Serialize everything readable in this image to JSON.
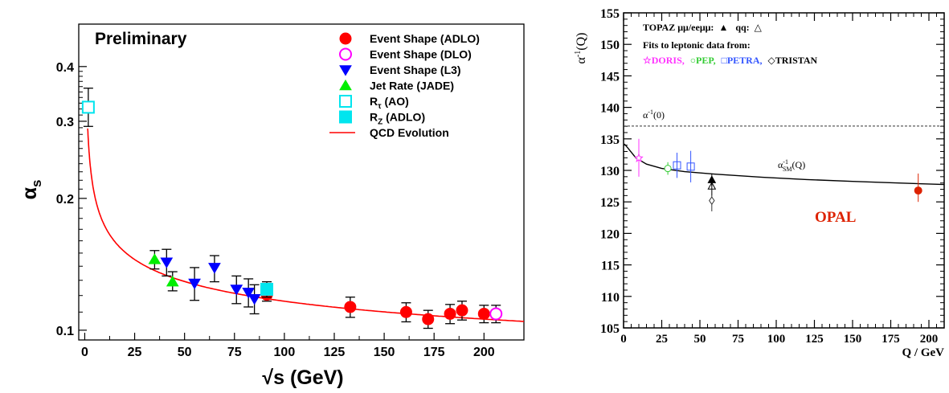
{
  "chart_data": [
    {
      "type": "scatter",
      "annotation": "Preliminary",
      "xlabel": "√s  (GeV)",
      "ylabel": "α",
      "ylabel_sub": "s",
      "xlim": [
        -3,
        220
      ],
      "ylim": [
        0.095,
        0.5
      ],
      "yscale": "log",
      "grid": false,
      "legend_position": "top-right",
      "x_ticks": [
        0,
        25,
        50,
        75,
        100,
        125,
        150,
        175,
        200
      ],
      "y_ticks": [
        0.1,
        0.2,
        0.3,
        0.4
      ],
      "y_tick_labels": [
        "0.1",
        "0.2",
        "0.3",
        "0.4"
      ],
      "colors": {
        "red": "#ff0000",
        "magenta": "#ff00ff",
        "blue": "#0000ff",
        "green": "#00ee00",
        "cyan": "#00e5ee"
      },
      "legend": [
        {
          "label": "Event Shape (ADLO)",
          "marker": "circle",
          "color": "#ff0000",
          "fill": true
        },
        {
          "label": "Event Shape (DLO)",
          "marker": "circle",
          "color": "#ff00ff",
          "fill": false
        },
        {
          "label": "Event Shape (L3)",
          "marker": "triangle-down",
          "color": "#0000ff",
          "fill": true
        },
        {
          "label": "Jet Rate (JADE)",
          "marker": "triangle-up",
          "color": "#00ee00",
          "fill": true
        },
        {
          "label": "R",
          "label_sub": "τ",
          "label_rest": " (AO)",
          "marker": "square",
          "color": "#00e5ee",
          "fill": false
        },
        {
          "label": "R",
          "label_sub": "Z",
          "label_rest": " (ADLO)",
          "marker": "square",
          "color": "#00e5ee",
          "fill": true
        },
        {
          "label": "QCD Evolution",
          "marker": "line",
          "color": "#ff0000"
        }
      ],
      "series": [
        {
          "name": "Event Shape (ADLO)",
          "marker": "circle",
          "color": "#ff0000",
          "fill": true,
          "points": [
            [
              91.2,
              0.1205,
              0.1165,
              0.1245
            ],
            [
              133,
              0.113,
              0.107,
              0.119
            ],
            [
              161,
              0.11,
              0.1045,
              0.1155
            ],
            [
              172,
              0.106,
              0.101,
              0.111
            ],
            [
              183,
              0.109,
              0.1035,
              0.1145
            ],
            [
              189,
              0.111,
              0.1055,
              0.1165
            ],
            [
              200,
              0.109,
              0.104,
              0.114
            ]
          ]
        },
        {
          "name": "Event Shape (DLO)",
          "marker": "circle",
          "color": "#ff00ff",
          "fill": false,
          "points": [
            [
              206,
              0.109,
              0.104,
              0.114
            ]
          ]
        },
        {
          "name": "Event Shape (L3)",
          "marker": "triangle-down",
          "color": "#0000ff",
          "fill": true,
          "points": [
            [
              41,
              0.143,
              0.133,
              0.153
            ],
            [
              55,
              0.128,
              0.117,
              0.139
            ],
            [
              65,
              0.139,
              0.129,
              0.148
            ],
            [
              76,
              0.124,
              0.115,
              0.133
            ],
            [
              82,
              0.122,
              0.113,
              0.131
            ],
            [
              85,
              0.118,
              0.109,
              0.127
            ]
          ]
        },
        {
          "name": "Jet Rate (JADE)",
          "marker": "triangle-up",
          "color": "#00ee00",
          "fill": true,
          "points": [
            [
              35,
              0.145,
              0.138,
              0.152
            ],
            [
              44,
              0.129,
              0.123,
              0.136
            ]
          ]
        },
        {
          "name": "Rτ (AO)",
          "marker": "square",
          "color": "#00e5ee",
          "fill": false,
          "points": [
            [
              1.78,
              0.323,
              0.292,
              0.357
            ]
          ]
        },
        {
          "name": "RZ (ADLO)",
          "marker": "square",
          "color": "#00e5ee",
          "fill": true,
          "points": [
            [
              91.2,
              0.124,
              0.119,
              0.129
            ]
          ]
        }
      ],
      "curve": {
        "name": "QCD Evolution",
        "color": "#ff0000",
        "alpha_s_mz": 0.118,
        "mz": 91.19,
        "x_range": [
          1.5,
          220
        ]
      }
    },
    {
      "type": "scatter",
      "xlabel": "Q / GeV",
      "ylabel": "α",
      "ylabel_sup": "-1",
      "ylabel_rest": "(Q)",
      "xlim": [
        0,
        210
      ],
      "ylim": [
        105,
        155
      ],
      "grid": false,
      "x_ticks": [
        0,
        25,
        50,
        75,
        100,
        125,
        150,
        175,
        200
      ],
      "y_ticks": [
        105,
        110,
        115,
        120,
        125,
        130,
        135,
        140,
        145,
        150,
        155
      ],
      "colors": {
        "doris": "#ff33ff",
        "pep": "#33cc33",
        "petra": "#3355ff",
        "tristan": "#000000",
        "opal": "#dd2200"
      },
      "legend_text": {
        "line1_a": "TOPAZ μμ/eeμμ:",
        "line1_b": "▲",
        "line1_c": "qq:",
        "line1_d": "△",
        "line2": "Fits to leptonic data from:",
        "doris": "☆DORIS,",
        "pep": "○PEP,",
        "petra": "□PETRA,",
        "tristan": "◇TRISTAN"
      },
      "ref_line": {
        "value": 137.036,
        "label": "α",
        "label_sup": "-1",
        "label_rest": "(0)"
      },
      "curve_label": {
        "main": "α",
        "sup": "-1",
        "sub": "SM",
        "rest": "(Q)"
      },
      "opal_label": "OPAL",
      "points": [
        {
          "name": "DORIS",
          "marker": "star",
          "color": "#ff33ff",
          "x": 10,
          "y": 132,
          "ylo": 129,
          "yhi": 135
        },
        {
          "name": "PEP",
          "marker": "circle-open",
          "color": "#33cc33",
          "x": 29,
          "y": 130.3,
          "ylo": 129.3,
          "yhi": 131.3
        },
        {
          "name": "PETRA",
          "marker": "square-open",
          "color": "#3355ff",
          "x": 35,
          "y": 130.8,
          "ylo": 128.8,
          "yhi": 132.8
        },
        {
          "name": "PETRA",
          "marker": "square-open",
          "color": "#3355ff",
          "x": 44,
          "y": 130.6,
          "ylo": 128.1,
          "yhi": 133.1
        },
        {
          "name": "TOPAZ μμ/eeμμ",
          "marker": "triangle-filled",
          "color": "#000000",
          "x": 57.8,
          "y": 128.5,
          "ylo": 127.5,
          "yhi": 129.5
        },
        {
          "name": "TOPAZ qq",
          "marker": "triangle-open",
          "color": "#000000",
          "x": 57.8,
          "y": 127.5,
          "ylo": 126,
          "yhi": 129
        },
        {
          "name": "TRISTAN",
          "marker": "diamond-open",
          "color": "#333333",
          "x": 57.8,
          "y": 125.2,
          "ylo": 123.5,
          "yhi": 127
        },
        {
          "name": "OPAL",
          "marker": "circle-filled",
          "color": "#dd2200",
          "x": 193,
          "y": 126.8,
          "ylo": 125,
          "yhi": 129.5
        }
      ],
      "curve": {
        "name": "α-1 SM(Q)",
        "color": "#000000",
        "points": [
          [
            0.5,
            134.2
          ],
          [
            3,
            133.5
          ],
          [
            8,
            132.0
          ],
          [
            15,
            131.0
          ],
          [
            25,
            130.3
          ],
          [
            40,
            129.8
          ],
          [
            60,
            129.4
          ],
          [
            91,
            128.9
          ],
          [
            120,
            128.55
          ],
          [
            150,
            128.25
          ],
          [
            180,
            128.0
          ],
          [
            210,
            127.75
          ]
        ]
      }
    }
  ]
}
